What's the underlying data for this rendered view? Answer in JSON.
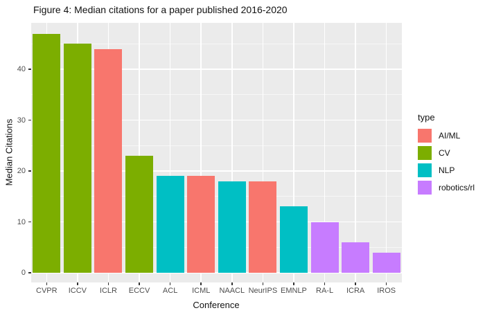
{
  "chart_data": {
    "type": "bar",
    "title": "Figure 4: Median citations for a paper published 2016-2020",
    "xlabel": "Conference",
    "ylabel": "Median Citations",
    "categories": [
      "CVPR",
      "ICCV",
      "ICLR",
      "ECCV",
      "ACL",
      "ICML",
      "NAACL",
      "NeurIPS",
      "EMNLP",
      "RA-L",
      "ICRA",
      "IROS"
    ],
    "values": [
      47,
      45,
      44,
      23,
      19,
      19,
      18,
      18,
      13,
      10,
      6,
      4
    ],
    "bar_types": [
      "CV",
      "CV",
      "AI/ML",
      "CV",
      "NLP",
      "AI/ML",
      "NLP",
      "AI/ML",
      "NLP",
      "robotics/rl",
      "robotics/rl",
      "robotics/rl"
    ],
    "ylim": [
      0,
      49
    ],
    "yticks": [
      0,
      10,
      20,
      30,
      40
    ],
    "yticks_minor": [
      5,
      15,
      25,
      35,
      45
    ],
    "grid": "on",
    "legend": {
      "title": "type",
      "position": "right",
      "entries": [
        {
          "label": "AI/ML",
          "color": "#F8766D"
        },
        {
          "label": "CV",
          "color": "#7CAE00"
        },
        {
          "label": "NLP",
          "color": "#00BFC4"
        },
        {
          "label": "robotics/rl",
          "color": "#C77CFF"
        }
      ]
    },
    "colors": {
      "AI/ML": "#F8766D",
      "CV": "#7CAE00",
      "NLP": "#00BFC4",
      "robotics/rl": "#C77CFF",
      "panel_background": "#EBEBEB",
      "gridline": "#FFFFFF",
      "tick_label": "#4D4D4D",
      "text": "#111111"
    }
  }
}
